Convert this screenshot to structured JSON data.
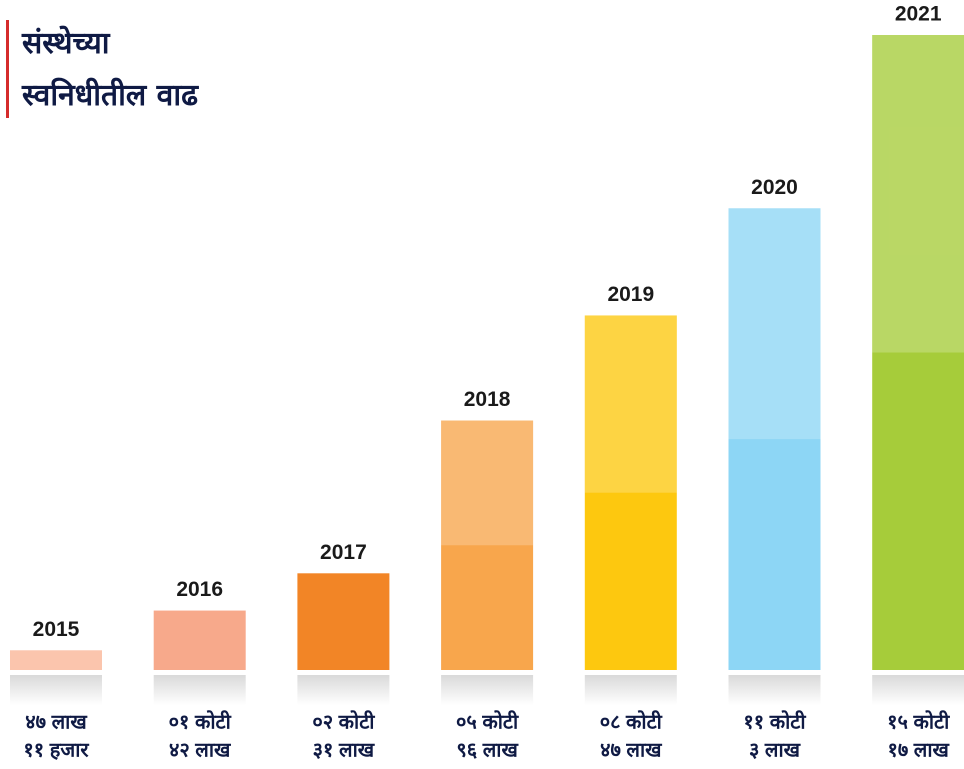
{
  "chart_data": {
    "type": "bar",
    "title": [
      "संस्थेच्या",
      "स्वनिधीतील वाढ"
    ],
    "categories": [
      "2015",
      "2016",
      "2017",
      "2018",
      "2019",
      "2020",
      "2021"
    ],
    "values": [
      4711000,
      14200000,
      23100000,
      59600000,
      84700000,
      110300000,
      151700000
    ],
    "value_labels": [
      [
        "४७ लाख",
        "११ हजार"
      ],
      [
        "०१ कोटी",
        "४२ लाख"
      ],
      [
        "०२ कोटी",
        "३१ लाख"
      ],
      [
        "०५ कोटी",
        "९६ लाख"
      ],
      [
        "०८ कोटी",
        "४७ लाख"
      ],
      [
        "११ कोटी",
        "३ लाख"
      ],
      [
        "१५ कोटी",
        "१७ लाख"
      ]
    ],
    "colors": [
      "#fbc5ad",
      "#f7a98b",
      "#f28526",
      "#f8a64c",
      "#fdc80f",
      "#8dd6f5",
      "#a6cc3a"
    ]
  }
}
